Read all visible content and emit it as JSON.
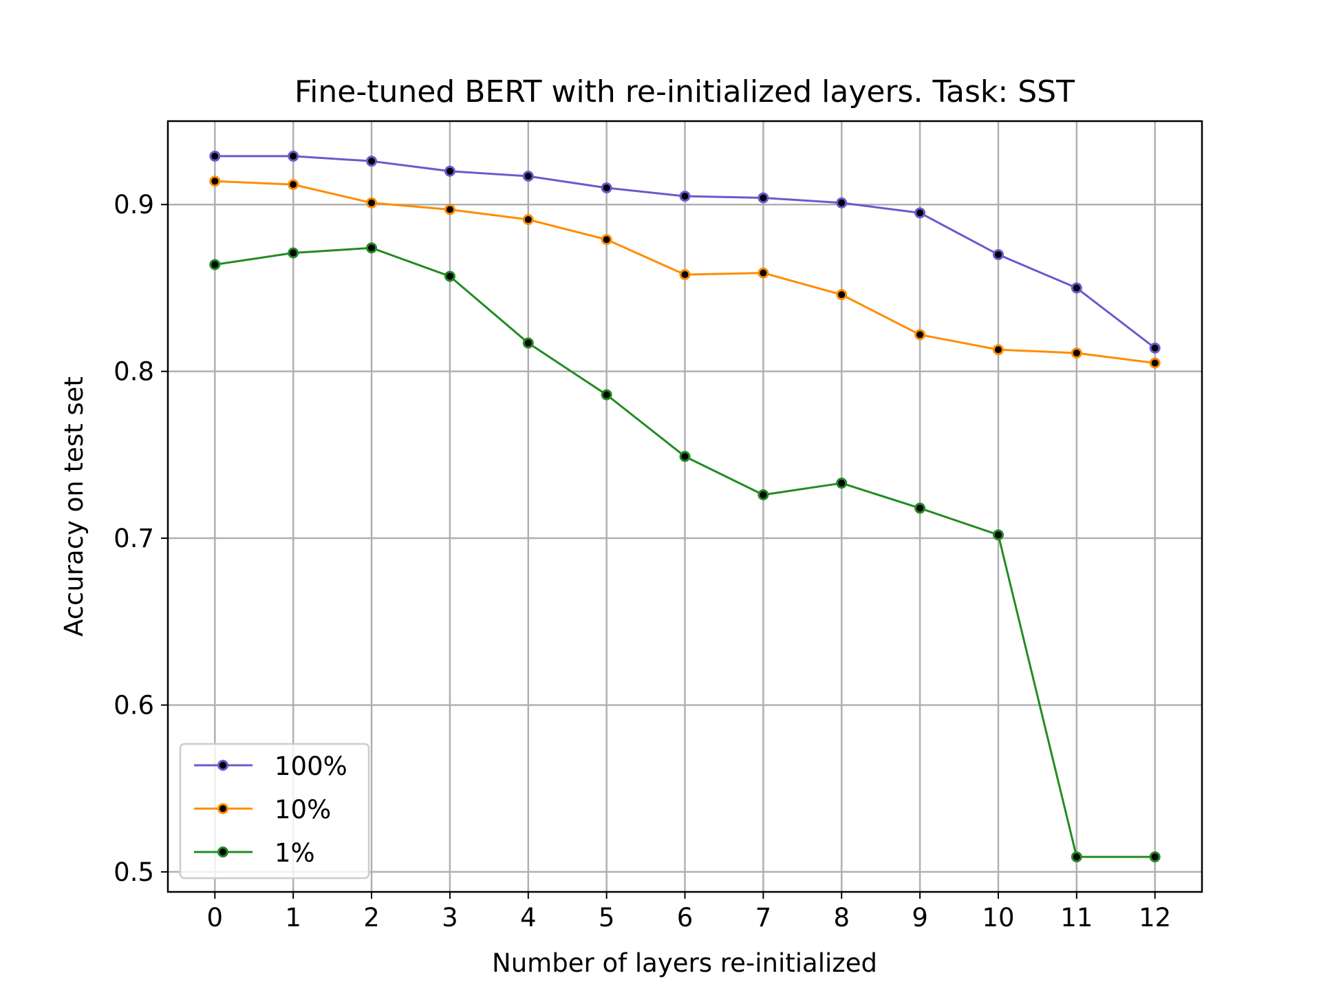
{
  "chart_data": {
    "type": "line",
    "title": "Fine-tuned BERT with re-initialized layers. Task: SST",
    "xlabel": "Number of layers re-initialized",
    "ylabel": "Accuracy on test set",
    "x": [
      0,
      1,
      2,
      3,
      4,
      5,
      6,
      7,
      8,
      9,
      10,
      11,
      12
    ],
    "xticks": [
      "0",
      "1",
      "2",
      "3",
      "4",
      "5",
      "6",
      "7",
      "8",
      "9",
      "10",
      "11",
      "12"
    ],
    "yticks": [
      "0.5",
      "0.6",
      "0.7",
      "0.8",
      "0.9"
    ],
    "ytick_values": [
      0.5,
      0.6,
      0.7,
      0.8,
      0.9
    ],
    "xlim": [
      -0.6,
      12.6
    ],
    "ylim": [
      0.488,
      0.95
    ],
    "grid": true,
    "legend_position": "lower-left",
    "series": [
      {
        "name": "100%",
        "color": "#6a5acd",
        "values": [
          0.929,
          0.929,
          0.926,
          0.92,
          0.917,
          0.91,
          0.905,
          0.904,
          0.901,
          0.895,
          0.87,
          0.85,
          0.814
        ]
      },
      {
        "name": "10%",
        "color": "#ff8c00",
        "values": [
          0.914,
          0.912,
          0.901,
          0.897,
          0.891,
          0.879,
          0.858,
          0.859,
          0.846,
          0.822,
          0.813,
          0.811,
          0.805
        ]
      },
      {
        "name": "1%",
        "color": "#228b22",
        "values": [
          0.864,
          0.871,
          0.874,
          0.857,
          0.817,
          0.786,
          0.749,
          0.726,
          0.733,
          0.718,
          0.702,
          0.509,
          0.509
        ]
      }
    ]
  }
}
